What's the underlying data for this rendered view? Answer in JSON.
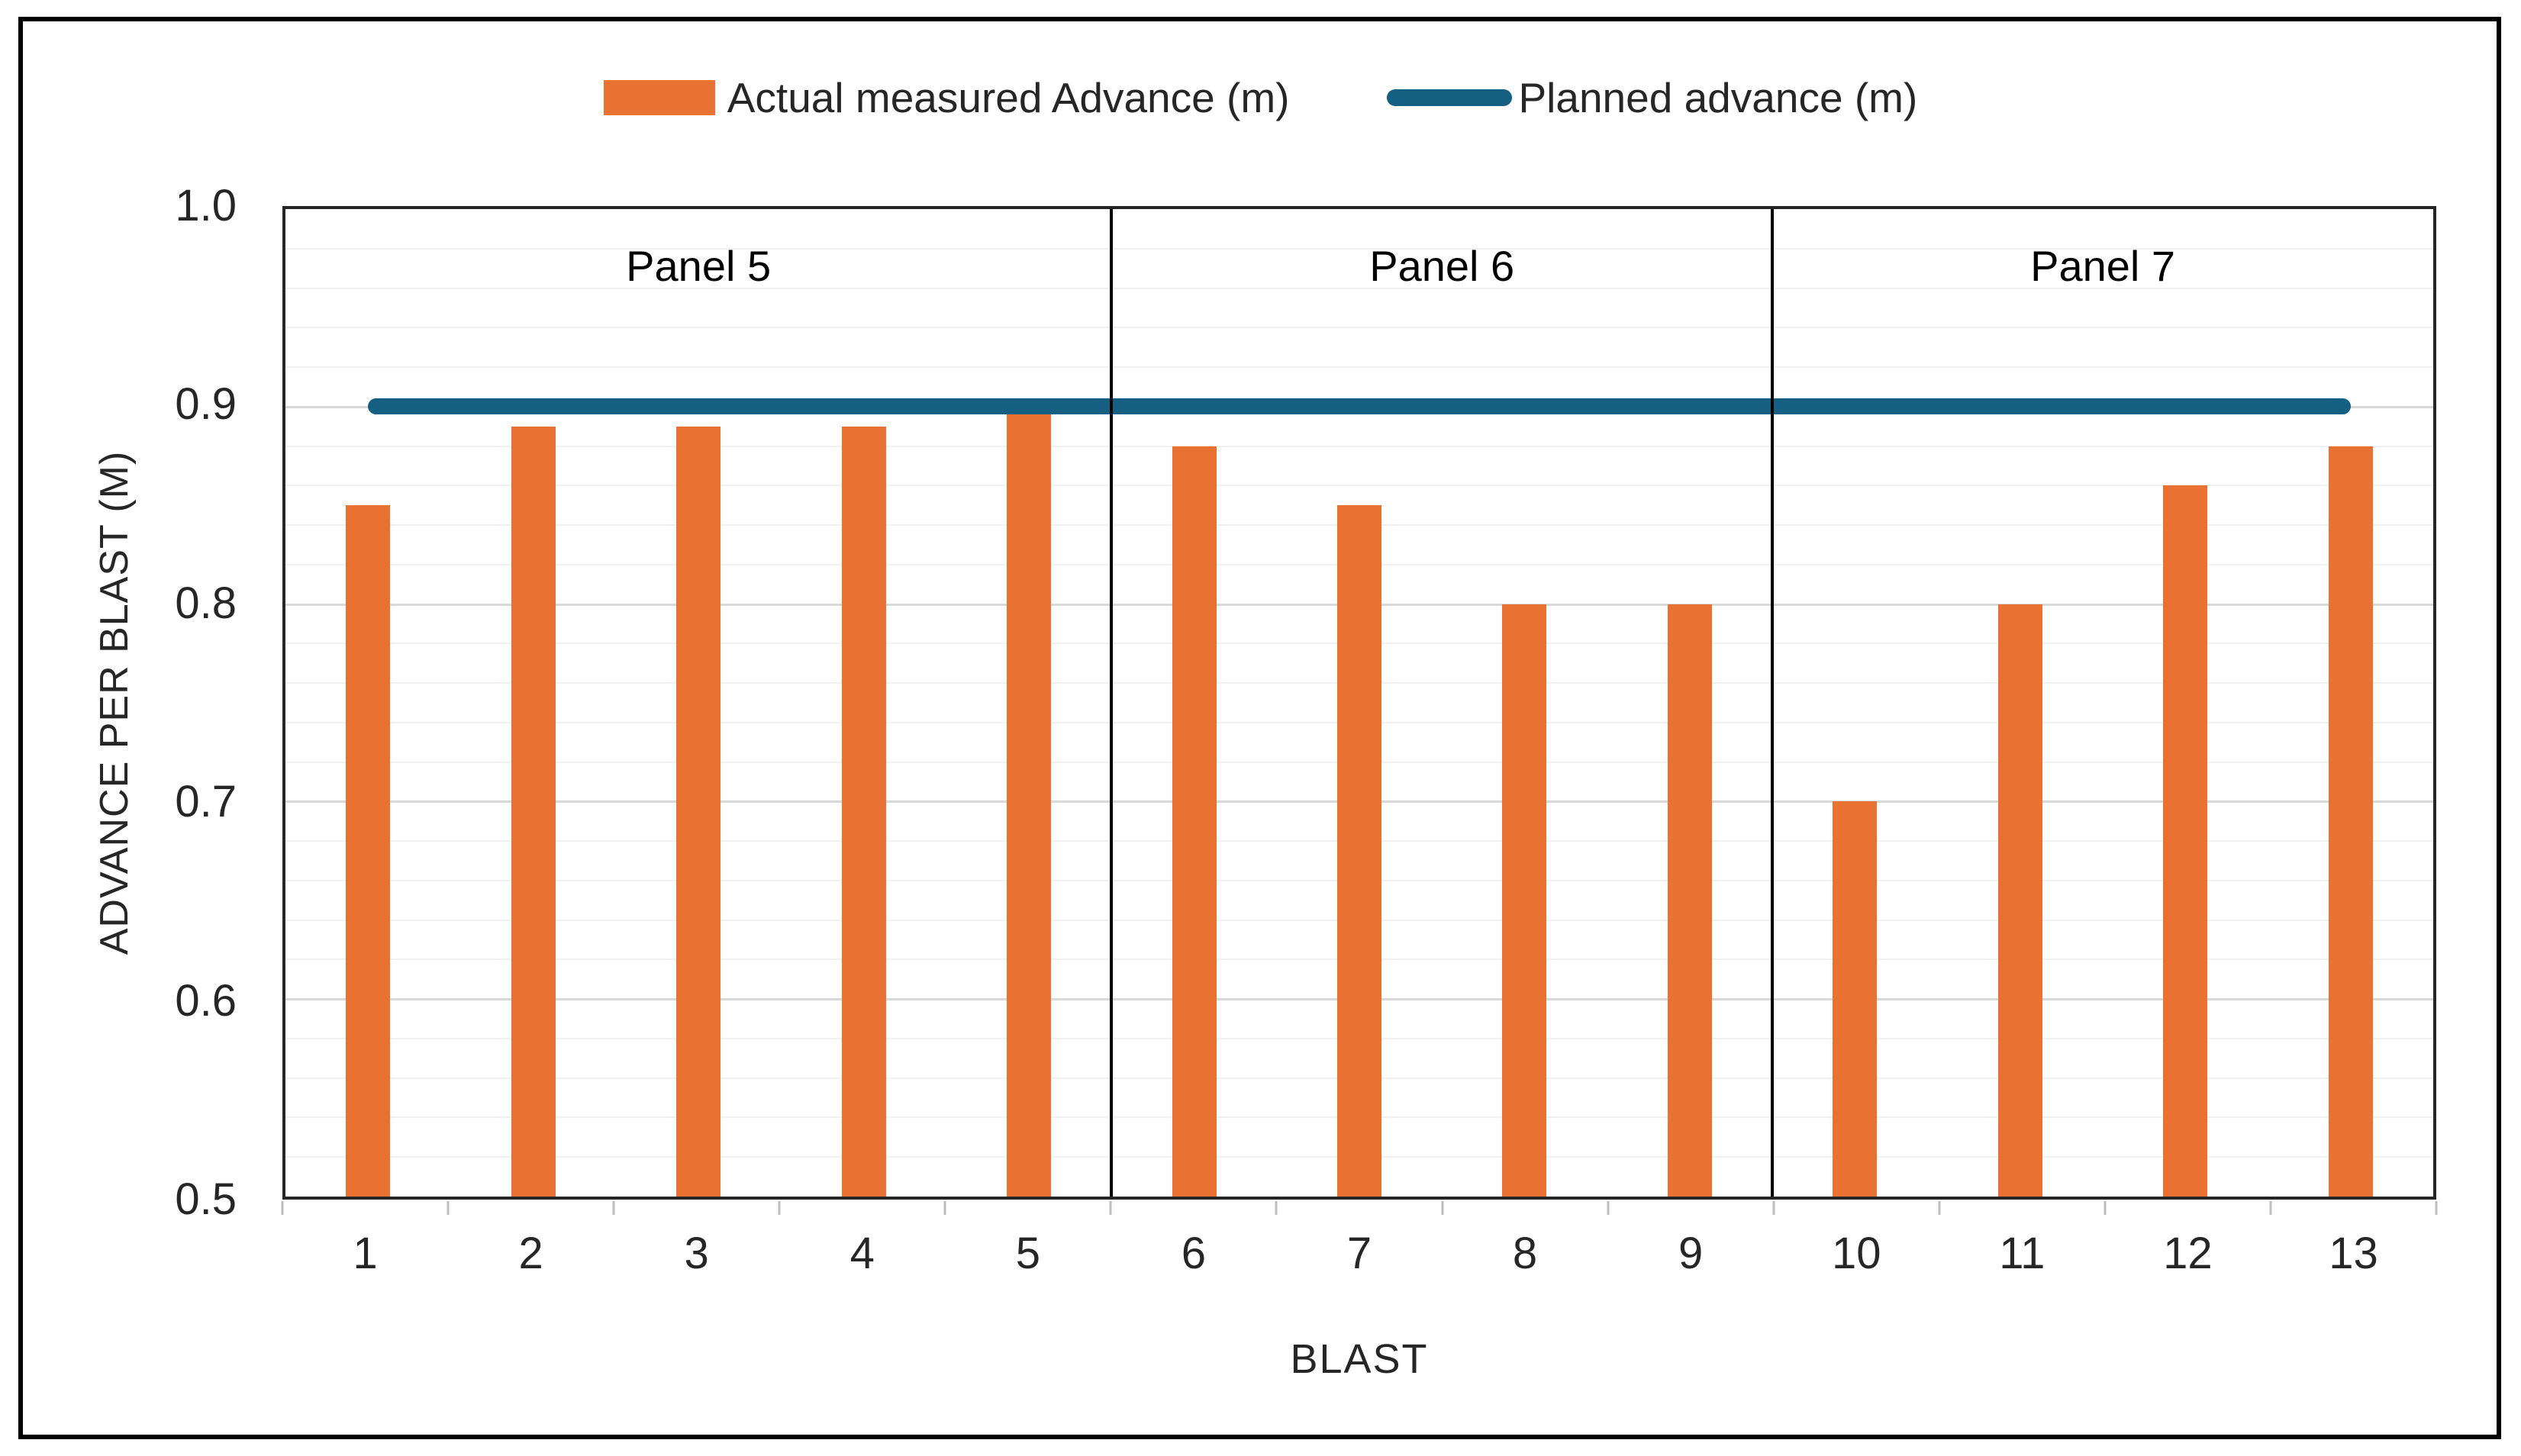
{
  "legend": {
    "actual_label": "Actual measured Advance (m)",
    "planned_label": "Planned advance (m)"
  },
  "colors": {
    "bar": "#E97132",
    "line": "#156082"
  },
  "chart_data": {
    "type": "bar",
    "title": "",
    "categories": [
      "1",
      "2",
      "3",
      "4",
      "5",
      "6",
      "7",
      "8",
      "9",
      "10",
      "11",
      "12",
      "13"
    ],
    "series": [
      {
        "name": "Actual measured Advance (m)",
        "type": "bar",
        "color": "#E97132",
        "values": [
          0.85,
          0.89,
          0.89,
          0.89,
          0.9,
          0.88,
          0.85,
          0.8,
          0.8,
          0.7,
          0.8,
          0.86,
          0.88
        ]
      },
      {
        "name": "Planned advance (m)",
        "type": "line",
        "color": "#156082",
        "values": [
          0.9,
          0.9,
          0.9,
          0.9,
          0.9,
          0.9,
          0.9,
          0.9,
          0.9,
          0.9,
          0.9,
          0.9,
          0.9
        ]
      }
    ],
    "xlabel": "BLAST",
    "ylabel": "ADVANCE PER BLAST (M)",
    "ylim": [
      0.5,
      1.0
    ],
    "ytick_step": 0.1,
    "minor_gridline_step": 0.02,
    "yticks": [
      "1.0",
      "0.9",
      "0.8",
      "0.7",
      "0.6",
      "0.5"
    ],
    "panels": [
      {
        "label": "Panel 5",
        "from": 1,
        "to": 5
      },
      {
        "label": "Panel 6",
        "from": 6,
        "to": 9
      },
      {
        "label": "Panel 7",
        "from": 10,
        "to": 13
      }
    ],
    "grid": true,
    "legend_position": "top"
  }
}
